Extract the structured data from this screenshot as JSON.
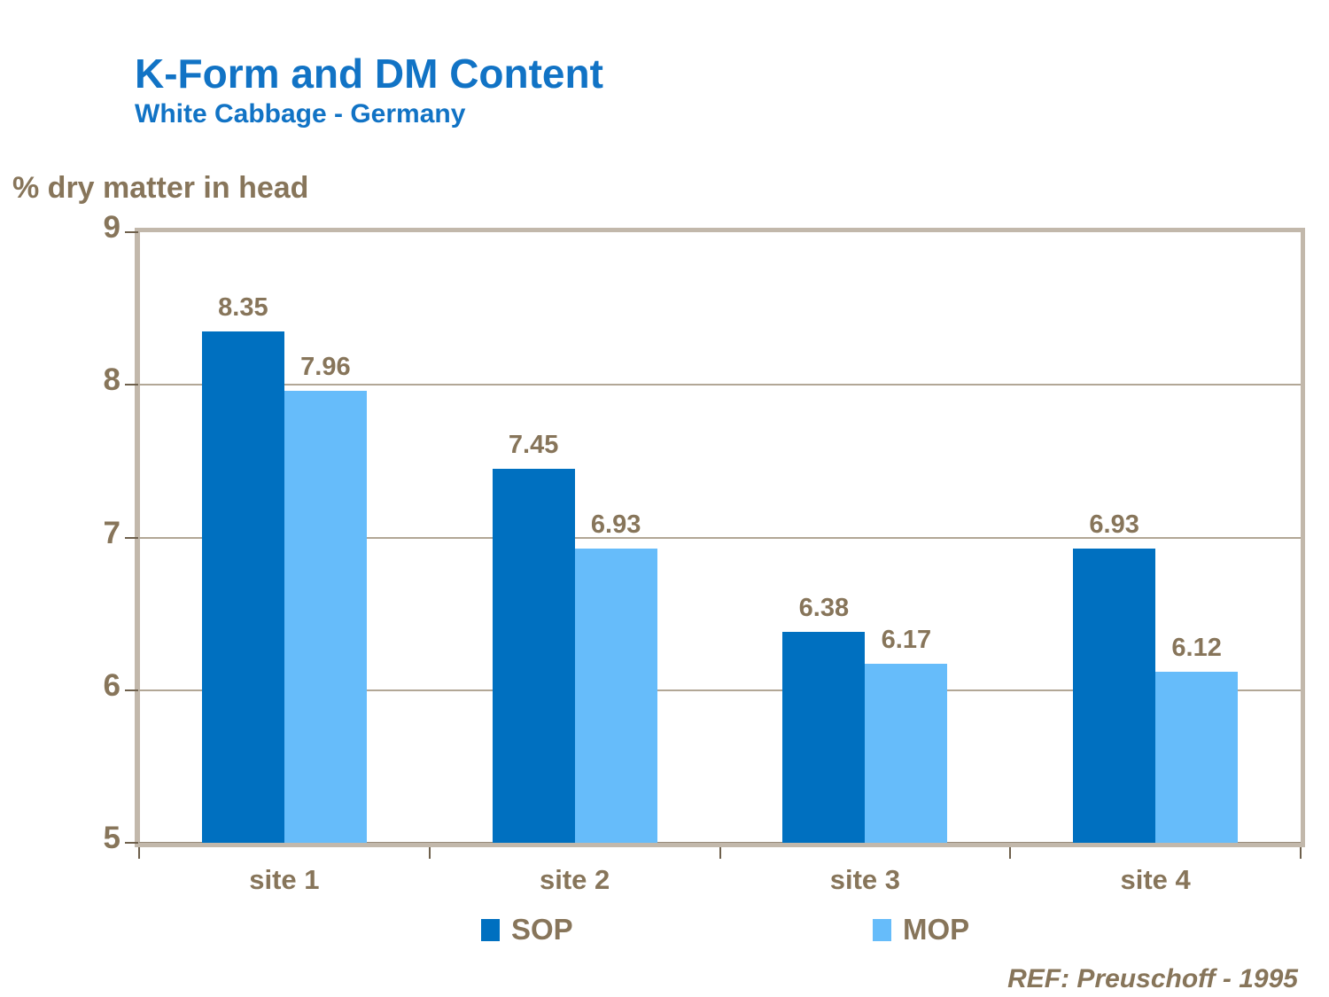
{
  "slide": {
    "title": "K-Form and DM Content",
    "subtitle": "White Cabbage - Germany",
    "reference": "REF: Preuschoff - 1995"
  },
  "colors": {
    "title_blue": "#1173C5",
    "text_brown": "#87755A",
    "axis_band": "#C2B8AB",
    "gridline": "#B2A796",
    "tick": "#6E604C",
    "sop_blue": "#0070C0",
    "mop_blue": "#66BCFA"
  },
  "chart_data": {
    "type": "bar",
    "title": "K-Form and DM Content",
    "subtitle": "White Cabbage - Germany",
    "ylabel": "% dry matter in head",
    "xlabel": "",
    "categories": [
      "site 1",
      "site 2",
      "site 3",
      "site 4"
    ],
    "series": [
      {
        "name": "SOP",
        "color": "#0070C0",
        "values": [
          8.35,
          7.45,
          6.38,
          6.93
        ]
      },
      {
        "name": "MOP",
        "color": "#66BCFA",
        "values": [
          7.96,
          6.93,
          6.17,
          6.12
        ]
      }
    ],
    "ylim": [
      5,
      9
    ],
    "yticks": [
      5,
      6,
      7,
      8,
      9
    ],
    "gridline_values": [
      6,
      7,
      8
    ],
    "grid": true,
    "legend_position": "bottom",
    "data_labels": true
  }
}
